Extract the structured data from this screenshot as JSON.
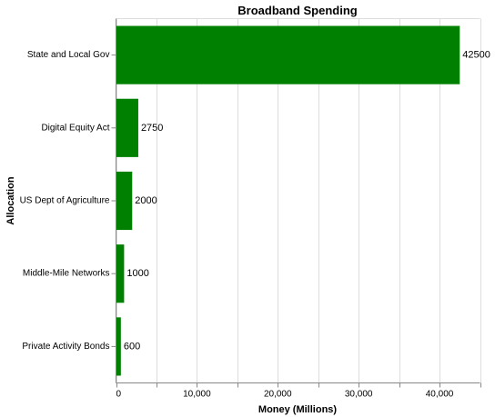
{
  "chart_data": {
    "type": "bar",
    "orientation": "horizontal",
    "title": "Broadband Spending",
    "xlabel": "Money (Millions)",
    "ylabel": "Allocation",
    "categories": [
      "State and Local Gov",
      "Digital Equity Act",
      "US Dept of Agriculture",
      "Middle-Mile Networks",
      "Private Activity Bonds"
    ],
    "values": [
      42500,
      2750,
      2000,
      1000,
      600
    ],
    "data_labels": [
      "42500",
      "2750",
      "2000",
      "1000",
      "600"
    ],
    "xlim": [
      0,
      45000
    ],
    "x_ticks": [
      0,
      10000,
      20000,
      30000,
      40000
    ],
    "x_tick_labels": [
      "0",
      "10,000",
      "20,000",
      "30,000",
      "40,000"
    ],
    "grid": true,
    "colors": {
      "bar": "#008000",
      "grid": "#dddddd",
      "axis": "#888888"
    }
  }
}
